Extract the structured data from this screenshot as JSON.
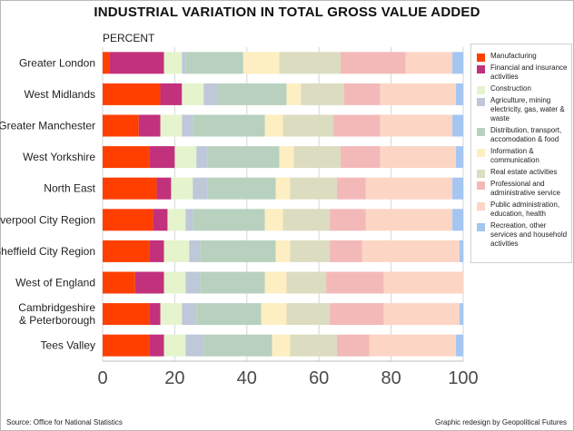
{
  "page": {
    "title": "INDUSTRIAL VARIATION IN TOTAL GROSS VALUE ADDED",
    "source": "Source: Office for National Statistics",
    "credit": "Graphic redesign by Geopolitical Futures"
  },
  "chart_data": {
    "type": "bar",
    "stacked": true,
    "orientation": "horizontal",
    "unit_label": "PERCENT",
    "xlim": [
      0,
      100
    ],
    "x_ticks": [
      0,
      20,
      40,
      60,
      80,
      100
    ],
    "grid": true,
    "legend_position": "right",
    "categories": [
      "Greater London",
      "West Midlands",
      "Greater Manchester",
      "West Yorkshire",
      "North East",
      "Liverpool City Region",
      "Sheffield City Region",
      "West of England",
      "Cambridgeshire & Peterborough",
      "Tees Valley"
    ],
    "series": [
      {
        "name": "Manufacturing",
        "color": "#fe3f00",
        "values": [
          2,
          16,
          10,
          13,
          15,
          14,
          13,
          9,
          13,
          13
        ]
      },
      {
        "name": "Financial and insurance activities",
        "color": "#c1317c",
        "values": [
          15,
          6,
          6,
          7,
          4,
          4,
          4,
          8,
          3,
          4
        ]
      },
      {
        "name": "Construction",
        "color": "#e5f4cd",
        "values": [
          5,
          6,
          6,
          6,
          6,
          5,
          7,
          6,
          6,
          6
        ]
      },
      {
        "name": "Agriculture, mining electricity, gas, water & waste",
        "color": "#bfc8d9",
        "values": [
          1,
          4,
          3,
          3,
          4,
          2,
          3,
          4,
          4,
          5
        ]
      },
      {
        "name": "Distribution, transport, accomodation & food",
        "color": "#b8d1bf",
        "values": [
          16,
          19,
          20,
          20,
          19,
          20,
          21,
          18,
          18,
          19
        ]
      },
      {
        "name": "Information & communication",
        "color": "#fdefc1",
        "values": [
          10,
          4,
          5,
          4,
          4,
          5,
          4,
          6,
          7,
          5
        ]
      },
      {
        "name": "Real estate activities",
        "color": "#dcdcc0",
        "values": [
          17,
          12,
          14,
          13,
          13,
          13,
          11,
          11,
          12,
          13
        ]
      },
      {
        "name": "Professional and administrative service",
        "color": "#f3b9b9",
        "values": [
          18,
          10,
          13,
          11,
          8,
          10,
          9,
          16,
          15,
          9
        ]
      },
      {
        "name": "Public administration, education, health",
        "color": "#fdd5c4",
        "values": [
          13,
          21,
          20,
          21,
          24,
          24,
          27,
          22,
          21,
          24
        ]
      },
      {
        "name": "Recreation, other services and household activities",
        "color": "#a5c5f2",
        "values": [
          3,
          2,
          3,
          2,
          3,
          3,
          1,
          0,
          1,
          2
        ]
      }
    ]
  }
}
